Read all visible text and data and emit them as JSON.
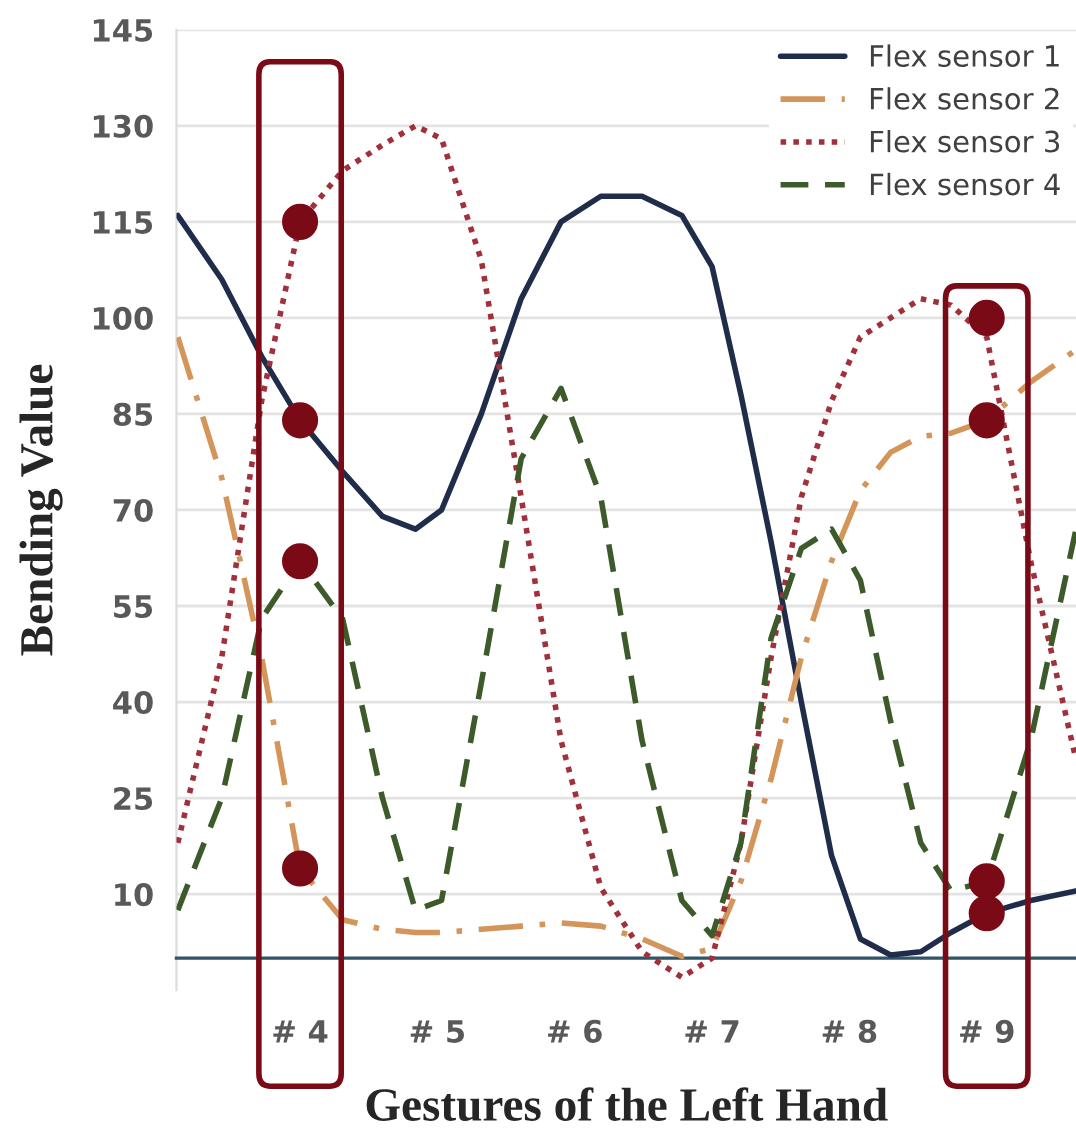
{
  "chart_data": {
    "type": "line",
    "xlabel": "Gestures of the Left Hand",
    "ylabel": "Bending Value",
    "x": [
      3.11,
      3.43,
      3.72,
      4,
      4.31,
      4.6,
      4.84,
      5.03,
      5.32,
      5.61,
      5.9,
      6.19,
      6.49,
      6.78,
      7.0,
      7.21,
      7.43,
      7.65,
      7.87,
      8.08,
      8.3,
      8.52,
      8.74,
      9.0,
      9.32,
      9.65
    ],
    "xlim": [
      3.1,
      9.65
    ],
    "xticks": [
      {
        "value": 4,
        "label": "# 4"
      },
      {
        "value": 5,
        "label": "# 5"
      },
      {
        "value": 6,
        "label": "# 6"
      },
      {
        "value": 7,
        "label": "# 7"
      },
      {
        "value": 8,
        "label": "# 8"
      },
      {
        "value": 9,
        "label": "# 9"
      }
    ],
    "ylim": [
      -5,
      145
    ],
    "yticks": [
      10,
      25,
      40,
      55,
      70,
      85,
      100,
      115,
      130,
      145
    ],
    "grid": "y",
    "legend": "top right",
    "series": [
      {
        "name": "Flex sensor 1",
        "color": "#1f2d4a",
        "line_style": "solid",
        "values": [
          116,
          106,
          94,
          84,
          76,
          69,
          67,
          70,
          85,
          103,
          115,
          119,
          119,
          116,
          108,
          88,
          65,
          40,
          16,
          3,
          0.5,
          1,
          4,
          7,
          9,
          10.5
        ]
      },
      {
        "name": "Flex sensor 2",
        "color": "#d4955a",
        "line_style": "dashdot",
        "values": [
          97,
          75,
          47,
          14,
          6,
          4.5,
          4,
          4,
          4.5,
          5,
          5.5,
          5,
          3,
          0.3,
          1.5,
          12,
          28,
          47,
          62,
          73,
          79,
          81.5,
          82,
          84,
          90,
          95
        ]
      },
      {
        "name": "Flex sensor 3",
        "color": "#a0303a",
        "line_style": "dotted",
        "values": [
          18,
          47,
          87,
          115,
          123,
          127,
          130,
          128,
          109,
          72,
          34,
          11,
          1,
          -3,
          0,
          18,
          47,
          72,
          87,
          97,
          100,
          103,
          102,
          97,
          62,
          31
        ]
      },
      {
        "name": "Flex sensor 4",
        "color": "#3d5a2a",
        "line_style": "dashed",
        "values": [
          7.5,
          25,
          53,
          62,
          53,
          25,
          7.5,
          9,
          43,
          78,
          89,
          72,
          34,
          9,
          3.5,
          18,
          50,
          64,
          67,
          59,
          37,
          18,
          10.5,
          12,
          34,
          67
        ]
      },
      {
        "type": "scatter",
        "marker": "circle",
        "color": "#7b0a17",
        "values": [
          null,
          null,
          null,
          115,
          null,
          null,
          null,
          null,
          null,
          null,
          null,
          null,
          null,
          null,
          null,
          null,
          null,
          null,
          null,
          null,
          null,
          null,
          null,
          100,
          null,
          null
        ]
      },
      {
        "type": "scatter",
        "marker": "circle",
        "color": "#7b0a17",
        "values": [
          null,
          null,
          null,
          84,
          null,
          null,
          null,
          null,
          null,
          null,
          null,
          null,
          null,
          null,
          null,
          null,
          null,
          null,
          null,
          null,
          null,
          null,
          null,
          84,
          null,
          null
        ]
      },
      {
        "type": "scatter",
        "marker": "circle",
        "color": "#7b0a17",
        "values": [
          null,
          null,
          null,
          62,
          null,
          null,
          null,
          null,
          null,
          null,
          null,
          null,
          null,
          null,
          null,
          null,
          null,
          null,
          null,
          null,
          null,
          null,
          null,
          12,
          null,
          null
        ]
      },
      {
        "type": "scatter",
        "marker": "circle",
        "color": "#7b0a17",
        "values": [
          null,
          null,
          null,
          14,
          null,
          null,
          null,
          null,
          null,
          null,
          null,
          null,
          null,
          null,
          null,
          null,
          null,
          null,
          null,
          null,
          null,
          null,
          null,
          7,
          null,
          null
        ]
      }
    ]
  }
}
